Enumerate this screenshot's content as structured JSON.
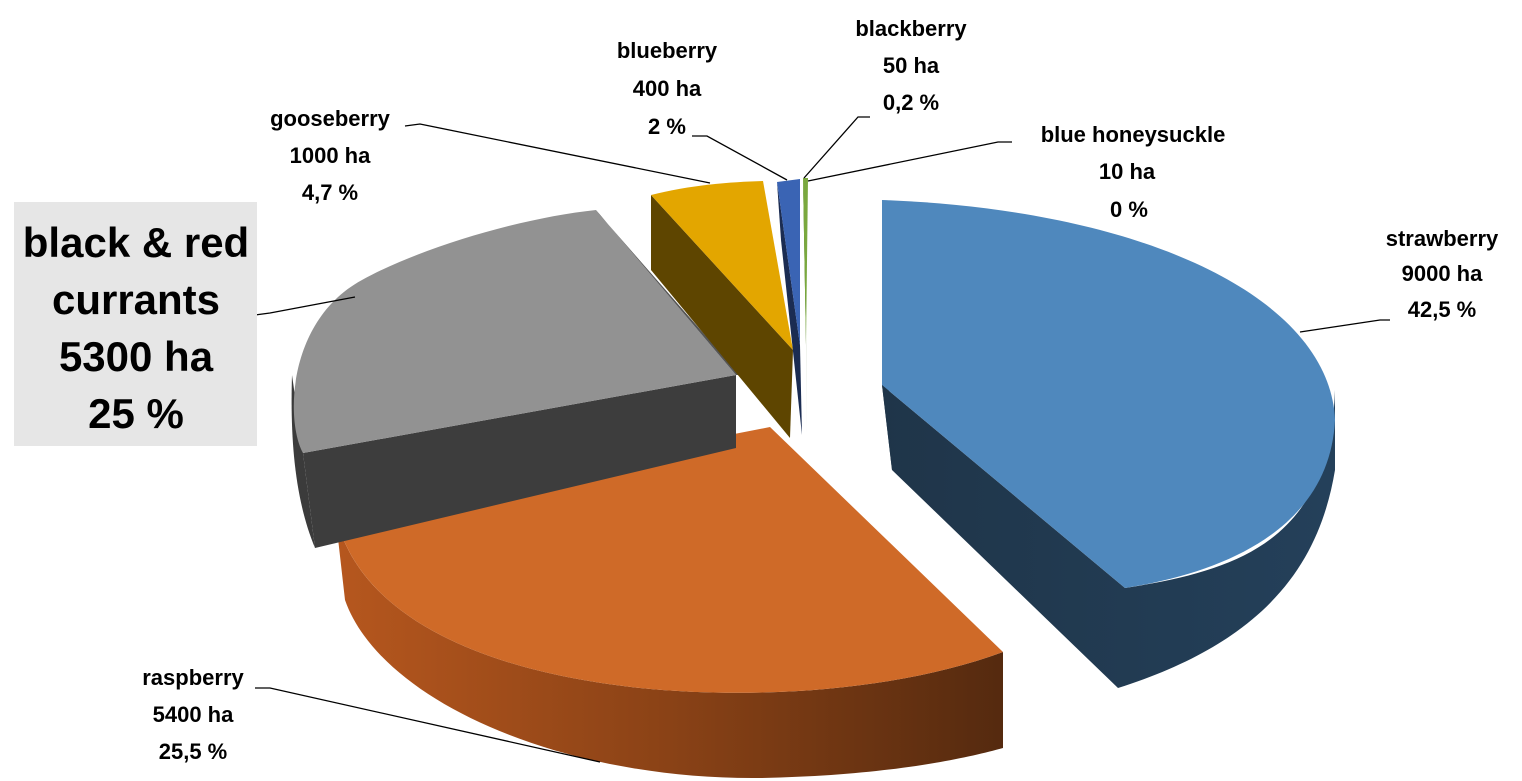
{
  "chart_data": {
    "type": "pie",
    "style": "3d-exploded",
    "slices": [
      {
        "key": "strawberry",
        "name": "strawberry",
        "area": "9000 ha",
        "percent": "42,5 %",
        "value": 9000,
        "color": "#4f88bd",
        "side_color": "#213850"
      },
      {
        "key": "raspberry",
        "name": "raspberry",
        "area": "5400 ha",
        "percent": "25,5 %",
        "value": 5400,
        "color": "#cf6a28",
        "side_color": "#6e3312"
      },
      {
        "key": "currants",
        "name": "black & red currants",
        "name_line1": "black & red",
        "name_line2": "currants",
        "area": "5300 ha",
        "percent": "25 %",
        "value": 5300,
        "color": "#929292",
        "side_color": "#3d3d3d",
        "label_bg": "#e6e6e6"
      },
      {
        "key": "gooseberry",
        "name": "gooseberry",
        "area": "1000 ha",
        "percent": "4,7 %",
        "value": 1000,
        "color": "#e3a600",
        "side_color": "#5e4500"
      },
      {
        "key": "blueberry",
        "name": "blueberry",
        "area": "400 ha",
        "percent": "2 %",
        "value": 400,
        "color": "#3a64b4",
        "side_color": "#1b2c52"
      },
      {
        "key": "blackberry",
        "name": "blackberry",
        "area": "50 ha",
        "percent": "0,2 %",
        "value": 50,
        "color": "#7aa83e",
        "side_color": "#3b5a1b"
      },
      {
        "key": "blue_honeysuckle",
        "name": "blue honeysuckle",
        "area": "10 ha",
        "percent": "0 %",
        "value": 10,
        "color": "#3a64b4",
        "side_color": "#1b2c52"
      }
    ]
  }
}
